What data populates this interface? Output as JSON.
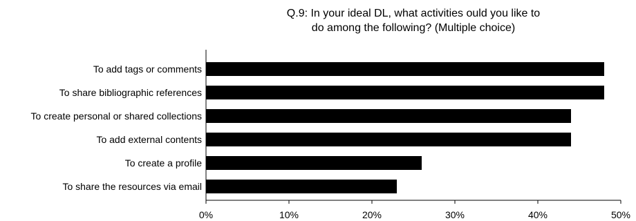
{
  "chart_data": {
    "type": "bar",
    "orientation": "horizontal",
    "title": [
      "Q.9: In your ideal DL, what activities ould you like to",
      "do among the following? (Multiple choice)"
    ],
    "categories": [
      "To add tags or comments",
      "To share bibliographic references",
      "To create personal or shared collections",
      "To add external contents",
      "To create a profile",
      "To share the resources via email"
    ],
    "values": [
      48,
      48,
      44,
      44,
      26,
      23
    ],
    "xlim": [
      0,
      50
    ],
    "xticks": [
      0,
      10,
      20,
      30,
      40,
      50
    ],
    "xtick_labels": [
      "0%",
      "10%",
      "20%",
      "30%",
      "40%",
      "50%"
    ],
    "bar_color": "#000000",
    "grid": false,
    "legend": "none"
  }
}
